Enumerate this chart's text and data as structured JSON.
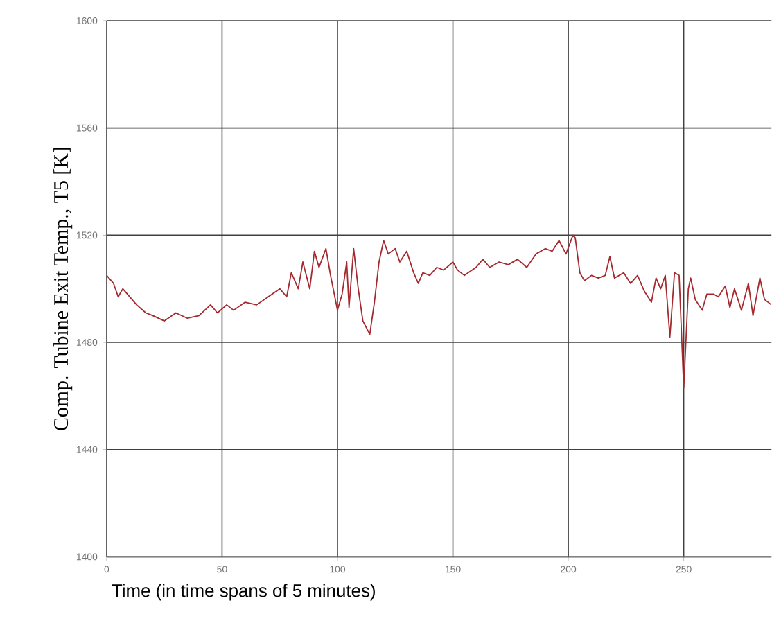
{
  "chart_data": {
    "type": "line",
    "xlabel": "Time (in time spans of 5 minutes)",
    "ylabel": "Comp. Tubine Exit Temp., T5 [K]",
    "x": [
      0,
      3,
      5,
      7,
      10,
      13,
      17,
      20,
      25,
      30,
      35,
      40,
      45,
      48,
      52,
      55,
      60,
      65,
      70,
      75,
      78,
      80,
      83,
      85,
      88,
      90,
      92,
      95,
      97,
      100,
      102,
      104,
      105,
      107,
      109,
      111,
      114,
      116,
      118,
      120,
      122,
      125,
      127,
      130,
      133,
      135,
      137,
      140,
      143,
      146,
      150,
      152,
      155,
      160,
      163,
      166,
      170,
      174,
      178,
      182,
      186,
      190,
      193,
      196,
      199,
      202,
      203,
      205,
      207,
      210,
      213,
      216,
      218,
      220,
      224,
      227,
      230,
      233,
      236,
      238,
      240,
      242,
      244,
      246,
      248,
      250,
      252,
      253,
      255,
      258,
      260,
      263,
      265,
      268,
      270,
      272,
      275,
      278,
      280,
      283,
      285,
      288
    ],
    "series": [
      {
        "color": "#a52a2f",
        "values": [
          1505,
          1502,
          1497,
          1500,
          1497,
          1494,
          1491,
          1490,
          1488,
          1491,
          1489,
          1490,
          1494,
          1491,
          1494,
          1492,
          1495,
          1494,
          1497,
          1500,
          1497,
          1506,
          1500,
          1510,
          1500,
          1514,
          1508,
          1515,
          1505,
          1492,
          1498,
          1510,
          1493,
          1515,
          1500,
          1488,
          1483,
          1495,
          1510,
          1518,
          1513,
          1515,
          1510,
          1514,
          1506,
          1502,
          1506,
          1505,
          1508,
          1507,
          1510,
          1507,
          1505,
          1508,
          1511,
          1508,
          1510,
          1509,
          1511,
          1508,
          1513,
          1515,
          1514,
          1518,
          1513,
          1520,
          1519,
          1506,
          1503,
          1505,
          1504,
          1505,
          1512,
          1504,
          1506,
          1502,
          1505,
          1499,
          1495,
          1504,
          1500,
          1505,
          1482,
          1506,
          1505,
          1463,
          1500,
          1504,
          1496,
          1492,
          1498,
          1498,
          1497,
          1501,
          1493,
          1500,
          1492,
          1502,
          1490,
          1504,
          1496,
          1494
        ]
      }
    ],
    "xlim": [
      0,
      288
    ],
    "ylim": [
      1400,
      1600
    ],
    "xticks": [
      0,
      50,
      100,
      150,
      200,
      250
    ],
    "yticks": [
      1400,
      1440,
      1480,
      1520,
      1560,
      1600
    ],
    "grid": true,
    "marker": "none",
    "line_style": "solid"
  }
}
